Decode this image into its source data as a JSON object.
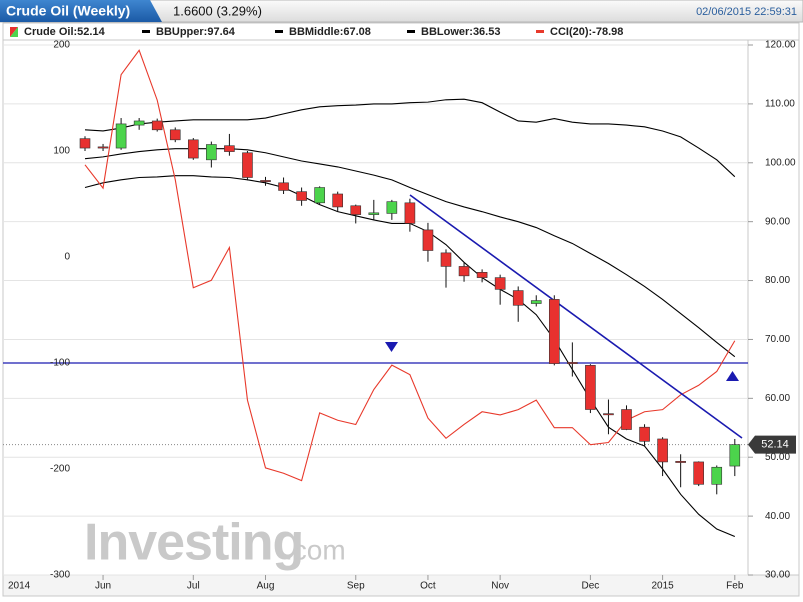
{
  "chart_data": {
    "type": "candlestick",
    "title": "Crude Oil (Weekly)",
    "change": "1.6600 (3.29%)",
    "timestamp": "02/06/2015 22:59:31",
    "watermark": {
      "brand": "Investing",
      "suffix": ".com"
    },
    "x_start_label": "2014",
    "categories": [
      null,
      "Jun",
      null,
      null,
      null,
      null,
      "Jul",
      null,
      null,
      null,
      "Aug",
      null,
      null,
      null,
      null,
      "Sep",
      null,
      null,
      null,
      "Oct",
      null,
      null,
      null,
      "Nov",
      null,
      null,
      null,
      null,
      "Dec",
      null,
      null,
      null,
      "2015",
      null,
      null,
      null,
      "Feb"
    ],
    "ylim": [
      -300,
      200
    ],
    "yticks": [
      200,
      100,
      0,
      -100,
      -200,
      -300
    ],
    "y2lim": [
      30,
      120
    ],
    "y2ticks": [
      {
        "value": 120,
        "label": "120.00"
      },
      {
        "value": 110,
        "label": "110.00"
      },
      {
        "value": 100,
        "label": "100.00"
      },
      {
        "value": 90,
        "label": "90.00"
      },
      {
        "value": 80,
        "label": "80.00"
      },
      {
        "value": 70,
        "label": "70.00"
      },
      {
        "value": 60,
        "label": "60.00"
      },
      {
        "value": 50,
        "label": "50.00"
      },
      {
        "value": 40,
        "label": "40.00"
      },
      {
        "value": 30,
        "label": "30.00"
      }
    ],
    "grid": true,
    "series": [
      {
        "name": "Crude Oil:52.14",
        "type": "candlestick",
        "axis": "y2",
        "up_color": "#4cd44c",
        "down_color": "#e8312f",
        "open": [
          104.1,
          102.7,
          102.5,
          106.4,
          107.1,
          105.6,
          103.9,
          100.5,
          102.9,
          101.7,
          97.0,
          96.6,
          95.1,
          93.2,
          94.7,
          92.7,
          91.2,
          91.4,
          93.2,
          88.6,
          84.7,
          82.4,
          81.4,
          80.5,
          78.3,
          76.1,
          76.8,
          66.1,
          65.6,
          57.4,
          58.1,
          55.1,
          53.1,
          49.3,
          49.2,
          45.4,
          48.5
        ],
        "high": [
          104.5,
          103.2,
          107.6,
          107.6,
          107.5,
          106.0,
          104.2,
          103.6,
          104.9,
          102.0,
          97.6,
          97.5,
          95.8,
          96.0,
          95.1,
          92.9,
          93.7,
          93.7,
          93.9,
          89.8,
          85.3,
          83.1,
          81.9,
          81.0,
          79.0,
          77.5,
          77.5,
          69.5,
          65.8,
          59.8,
          58.8,
          55.6,
          53.4,
          50.5,
          49.3,
          48.6,
          53.1
        ],
        "low": [
          102.0,
          102.0,
          102.2,
          105.6,
          105.3,
          103.5,
          100.5,
          99.2,
          101.2,
          97.0,
          96.1,
          94.7,
          92.7,
          93.0,
          91.7,
          89.7,
          90.3,
          90.3,
          88.3,
          83.2,
          78.8,
          79.8,
          79.7,
          75.9,
          73.0,
          75.6,
          65.6,
          63.7,
          57.5,
          53.9,
          54.6,
          51.8,
          46.8,
          44.9,
          45.1,
          43.7,
          46.8
        ],
        "close": [
          102.5,
          102.6,
          106.6,
          107.1,
          105.6,
          103.9,
          100.8,
          103.1,
          101.9,
          97.5,
          96.9,
          95.3,
          93.6,
          95.8,
          92.5,
          91.2,
          91.5,
          93.4,
          89.7,
          85.1,
          82.4,
          80.8,
          80.5,
          78.5,
          75.8,
          76.6,
          65.9,
          66.0,
          58.1,
          57.2,
          54.7,
          52.7,
          49.2,
          49.1,
          45.4,
          48.3,
          52.14
        ]
      },
      {
        "name": "BBUpper:97.64",
        "type": "line",
        "axis": "y2",
        "color": "#000000",
        "values": [
          105.6,
          105.4,
          105.9,
          106.6,
          106.9,
          107.1,
          107.3,
          107.3,
          107.3,
          107.3,
          107.6,
          108.3,
          109.0,
          109.5,
          109.7,
          109.8,
          110.0,
          110.0,
          110.2,
          110.3,
          110.7,
          110.8,
          110.2,
          108.6,
          107.1,
          106.9,
          107.5,
          106.9,
          106.6,
          106.6,
          106.4,
          106.1,
          105.4,
          104.4,
          102.5,
          100.5,
          97.64
        ]
      },
      {
        "name": "BBMiddle:67.08",
        "type": "line",
        "axis": "y2",
        "color": "#000000",
        "values": [
          100.7,
          101.0,
          101.5,
          101.9,
          102.2,
          102.4,
          102.4,
          102.4,
          102.4,
          102.2,
          101.7,
          101.0,
          100.3,
          99.8,
          99.3,
          98.6,
          97.9,
          97.1,
          95.8,
          94.6,
          93.4,
          92.5,
          91.7,
          90.8,
          90.0,
          89.0,
          87.6,
          86.3,
          84.6,
          82.9,
          81.0,
          79.0,
          76.8,
          74.4,
          72.0,
          69.5,
          67.08
        ]
      },
      {
        "name": "BBLower:36.53",
        "type": "line",
        "axis": "y2",
        "color": "#000000",
        "values": [
          95.8,
          96.6,
          97.1,
          97.5,
          97.6,
          97.8,
          97.8,
          97.6,
          97.5,
          97.1,
          96.6,
          95.8,
          94.4,
          92.9,
          91.7,
          91.0,
          90.3,
          89.7,
          89.7,
          88.3,
          86.1,
          83.1,
          80.5,
          78.5,
          76.8,
          74.2,
          70.0,
          64.9,
          59.8,
          55.1,
          53.1,
          51.9,
          48.0,
          43.7,
          40.3,
          37.8,
          36.53
        ]
      },
      {
        "name": "CCI(20):-78.98",
        "type": "line",
        "axis": "y",
        "color": "#e8392b",
        "values": [
          87,
          65,
          172,
          195,
          148,
          73,
          -29,
          -22,
          9,
          -135,
          -199,
          -204,
          -211,
          -147,
          -154,
          -158,
          -125,
          -102,
          -111,
          -152,
          -171,
          -158,
          -146,
          -149,
          -144,
          -135,
          -161,
          -161,
          -177,
          -175,
          -154,
          -146,
          -144,
          -130,
          -121,
          -108,
          -78.98
        ]
      }
    ]
  }
}
